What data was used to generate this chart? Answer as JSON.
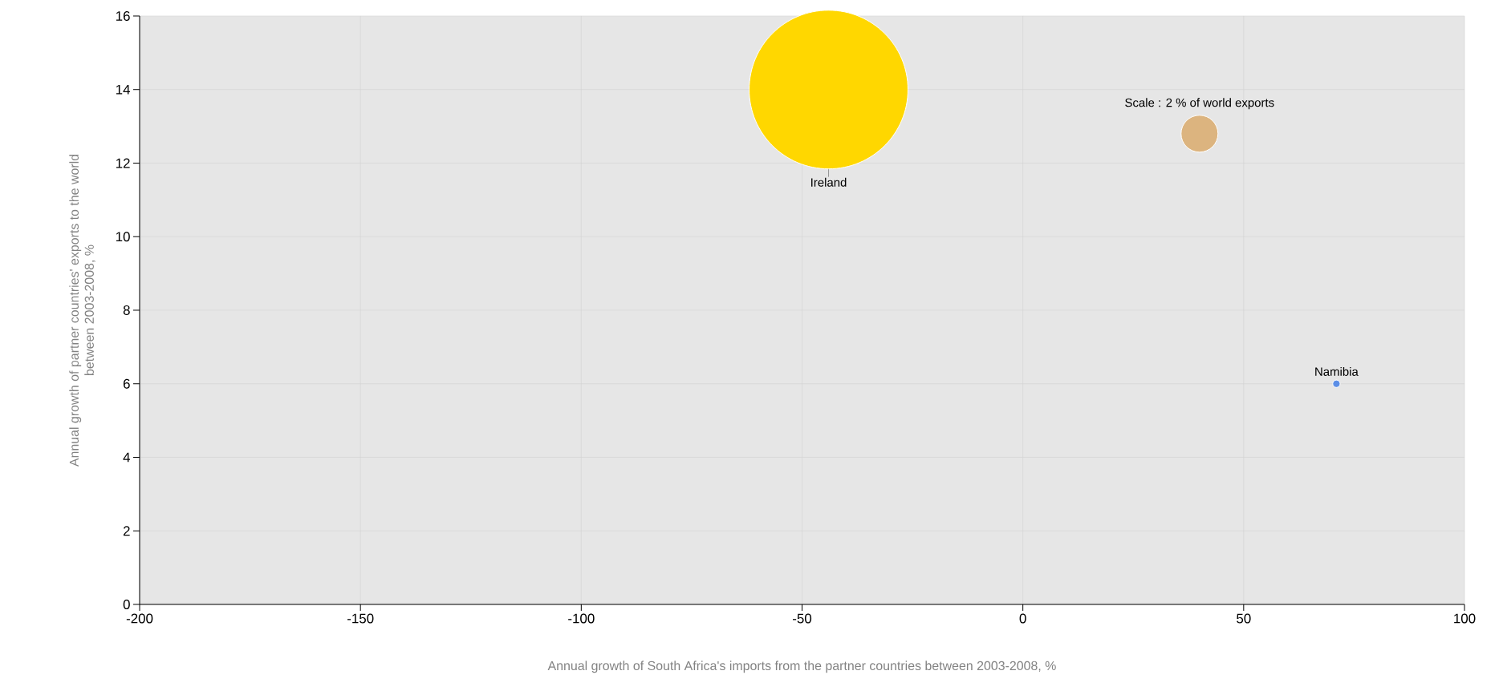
{
  "chart_data": {
    "type": "bubble",
    "xlabel": "Annual growth of South Africa's imports from the partner countries between 2003-2008, %",
    "ylabel": "Annual growth of partner countries' exports to the world between 2003-2008, %",
    "size_legend": [
      {
        "value": 2,
        "label": "Scale : 2 % of world exports"
      }
    ],
    "legend": "top right",
    "grid": true,
    "xlim": [
      -200,
      100
    ],
    "xticks": [
      -200,
      -150,
      -100,
      -50,
      0,
      50,
      100
    ],
    "ylim": [
      0,
      16
    ],
    "yticks": [
      0,
      2,
      4,
      6,
      8,
      10,
      12,
      14,
      16
    ],
    "series": [
      {
        "name": "Ireland",
        "color": "#ffd700",
        "x": [
          -44
        ],
        "values": [
          14
        ],
        "sizes": [
          37
        ]
      },
      {
        "name": "Namibia",
        "color": "#5b8ee6",
        "x": [
          71
        ],
        "values": [
          6
        ],
        "sizes": [
          0.08
        ]
      }
    ]
  }
}
